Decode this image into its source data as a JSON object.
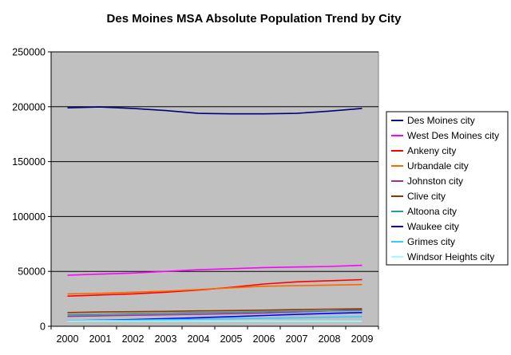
{
  "chart_data": {
    "type": "line",
    "title": "Des Moines MSA Absolute Population Trend by City",
    "xlabel": "",
    "ylabel": "",
    "x": [
      "2000",
      "2001",
      "2002",
      "2003",
      "2004",
      "2005",
      "2006",
      "2007",
      "2008",
      "2009"
    ],
    "ylim": [
      0,
      250000
    ],
    "yticks": [
      0,
      50000,
      100000,
      150000,
      200000,
      250000
    ],
    "ytick_labels": [
      "0",
      "50000",
      "100000",
      "150000",
      "200000",
      "250000"
    ],
    "grid": "horizontal",
    "legend_position": "right",
    "plot_background": "#c0c0c0",
    "series": [
      {
        "name": "Des Moines city",
        "color": "#000080",
        "values": [
          199000,
          199800,
          198500,
          196500,
          194000,
          193500,
          193500,
          194000,
          196000,
          198500
        ]
      },
      {
        "name": "West Des Moines city",
        "color": "#ff00ff",
        "values": [
          46500,
          47500,
          48500,
          50000,
          51500,
          52500,
          53500,
          54000,
          54500,
          55500
        ]
      },
      {
        "name": "Ankeny city",
        "color": "#ff0000",
        "values": [
          27500,
          28500,
          29500,
          31000,
          33000,
          35500,
          38500,
          40500,
          41500,
          42500
        ]
      },
      {
        "name": "Urbandale city",
        "color": "#ff6600",
        "values": [
          29500,
          30000,
          31000,
          32000,
          33500,
          35000,
          36500,
          37000,
          37500,
          38000
        ]
      },
      {
        "name": "Johnston city",
        "color": "#993399",
        "values": [
          9000,
          9500,
          10000,
          10500,
          11000,
          11500,
          12000,
          13000,
          14000,
          15500
        ]
      },
      {
        "name": "Clive city",
        "color": "#993300",
        "values": [
          12500,
          13000,
          13300,
          13600,
          14000,
          14300,
          14700,
          15200,
          15600,
          15900
        ]
      },
      {
        "name": "Altoona city",
        "color": "#339999",
        "values": [
          10500,
          11000,
          11500,
          12000,
          12500,
          12800,
          13200,
          13700,
          14000,
          14300
        ]
      },
      {
        "name": "Waukee city",
        "color": "#0000ff",
        "values": [
          5000,
          5500,
          6200,
          7000,
          7800,
          8800,
          9800,
          10800,
          11800,
          12500
        ]
      },
      {
        "name": "Grimes city",
        "color": "#33ccff",
        "values": [
          5000,
          5300,
          5600,
          6000,
          6400,
          6800,
          7300,
          7800,
          8300,
          8800
        ]
      },
      {
        "name": "Windsor Heights city",
        "color": "#99ffff",
        "values": [
          4800,
          4800,
          4750,
          4700,
          4700,
          4650,
          4650,
          4600,
          4600,
          4600
        ]
      }
    ]
  }
}
